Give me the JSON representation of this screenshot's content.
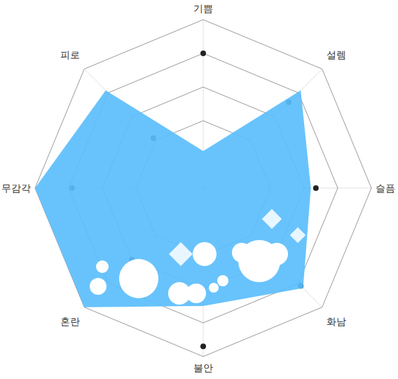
{
  "chart_data": {
    "type": "radar",
    "categories": [
      "기쁨",
      "설렘",
      "슬픔",
      "화남",
      "불안",
      "혼란",
      "무감각",
      "피로"
    ],
    "series": [
      {
        "type": "area",
        "color": "#5bbefc",
        "values": [
          1.1,
          4.1,
          3.2,
          4.2,
          3.5,
          5,
          5,
          4.1
        ]
      },
      {
        "type": "scatter",
        "color": "#222222",
        "marker": "circle",
        "values": [
          4,
          3.6,
          3.35,
          4.1,
          4.7,
          3,
          3.9,
          2.1
        ]
      }
    ],
    "ylim": [
      0,
      5
    ],
    "yticks": [
      2,
      3,
      4,
      5
    ],
    "grid": true,
    "tick_labels": false
  }
}
